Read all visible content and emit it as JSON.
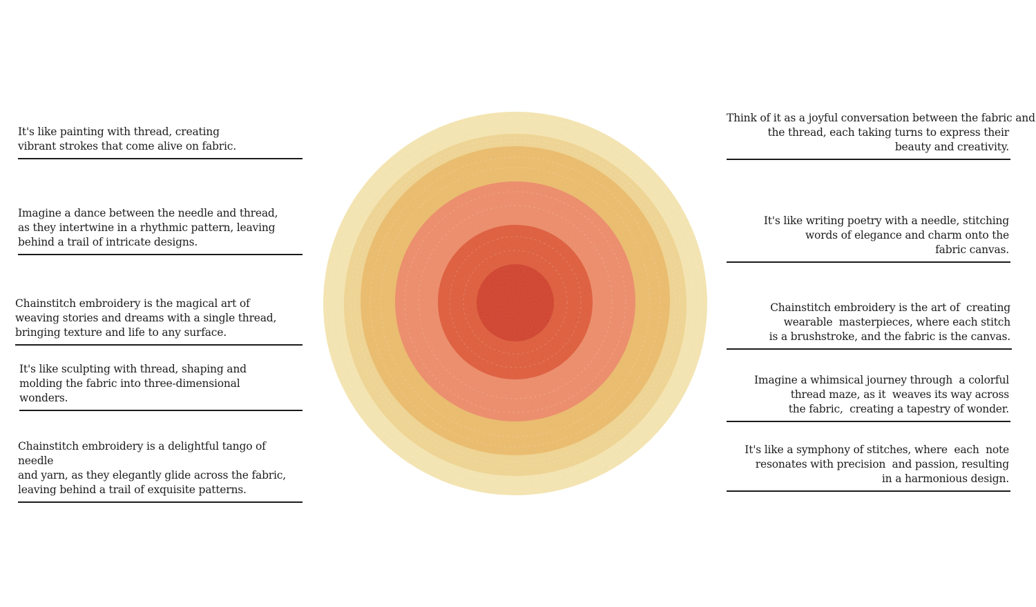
{
  "left_notes": [
    {
      "text": "It's like painting with thread, creating\nvibrant strokes that come alive on fabric."
    },
    {
      "text": "Imagine a dance between the needle and thread,\n as they intertwine in a rhythmic pattern, leaving\nbehind a trail of intricate designs."
    },
    {
      "text": "Chainstitch embroidery is the magical art of\nweaving stories and dreams with a single thread,\nbringing texture and life to any surface."
    },
    {
      "text": "It's like sculpting with thread, shaping and\nmolding  the fabric into three-dimensional\nwonders."
    },
    {
      "text": "Chainstitch embroidery is a delightful tango of needle\nand yarn, as they elegantly glide across the fabric,\nleaving behind a trail of exquisite patterns."
    }
  ],
  "right_notes": [
    {
      "text": "Think of it as a joyful conversation between the fabric and\nthe thread, each taking turns to express their\nbeauty and creativity."
    },
    {
      "text": "It's like writing poetry with a needle, stitching\nwords of elegance and charm onto the\nfabric canvas."
    },
    {
      "text": "Chainstitch embroidery is the art of  creating\nwearable  masterpieces, where each stitch\nis a brushstroke, and the fabric is the canvas."
    },
    {
      "text": "Imagine a whimsical journey through  a colorful\nthread maze, as it  weaves its way across\nthe fabric,  creating a tapestry of wonder."
    },
    {
      "text": "It's like a symphony of stitches, where  each  note\nresonates with precision  and passion, resulting\nin a harmonious design."
    }
  ],
  "rug": {
    "rings": [
      {
        "name": "outer-cream-ring",
        "color": "#f6e6b2"
      },
      {
        "name": "light-yellow-ring",
        "color": "#f1d693"
      },
      {
        "name": "golden-ring",
        "color": "#ecbd6a"
      },
      {
        "name": "salmon-ring",
        "color": "#ee8c67"
      },
      {
        "name": "orange-red-ring",
        "color": "#e05a32"
      },
      {
        "name": "red-center",
        "color": "#d23a1d"
      }
    ]
  }
}
